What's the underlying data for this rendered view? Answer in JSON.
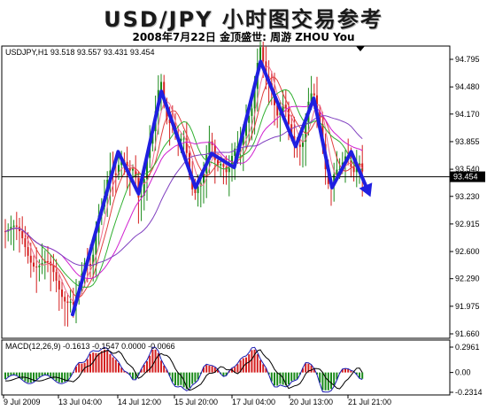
{
  "header": {
    "title": "USD/JPY 小时图交易参考",
    "subtitle": "2008年7月22日    金顶盛世: 周游 ZHOU You"
  },
  "chart_data": [
    {
      "type": "line",
      "subtype": "candlestick",
      "label": "USDJPY,H1  93.518 93.557 93.431 93.454",
      "symbol": "USDJPY,H1",
      "ohlc": {
        "open": 93.518,
        "high": 93.557,
        "low": 93.431,
        "close": 93.454
      },
      "current_price": 93.454,
      "current_price_label": "93.454",
      "y_ticks": [
        "94.795",
        "94.480",
        "94.170",
        "93.855",
        "93.540",
        "93.230",
        "92.915",
        "92.600",
        "92.290",
        "91.975",
        "91.660"
      ],
      "ylim": [
        91.66,
        94.795
      ],
      "x_ticks": [
        "9 Jul 2009",
        "13 Jul 04:00",
        "14 Jul 12:00",
        "15 Jul 20:00",
        "17 Jul 04:00",
        "20 Jul 13:00",
        "21 Jul 21:00"
      ],
      "trend_path": [
        {
          "x": 0.0,
          "y": 91.88
        },
        {
          "x": 1.0,
          "y": 93.74
        },
        {
          "x": 1.45,
          "y": 93.26
        },
        {
          "x": 1.95,
          "y": 94.43
        },
        {
          "x": 2.7,
          "y": 93.33
        },
        {
          "x": 3.05,
          "y": 93.72
        },
        {
          "x": 3.55,
          "y": 93.56
        },
        {
          "x": 4.13,
          "y": 94.77
        },
        {
          "x": 4.9,
          "y": 93.8
        },
        {
          "x": 5.3,
          "y": 94.35
        },
        {
          "x": 5.7,
          "y": 93.33
        },
        {
          "x": 6.12,
          "y": 93.74
        },
        {
          "x": 6.5,
          "y": 93.28
        }
      ],
      "colors": {
        "trend": "#1f1fe0",
        "bull": "#1a8a1a",
        "bear": "#d42020",
        "ma_magenta": "#d020d0",
        "ma_red": "#e04040",
        "ma_green": "#30b030",
        "ma_purple": "#8040c0",
        "ma_pink": "#f07090"
      }
    },
    {
      "type": "bar",
      "label": "MACD(12,26,9) -0.1613 -0.1547 0.0000 -0.0066",
      "y_ticks": [
        "0.2961",
        "0.00",
        "-0.2314"
      ],
      "ylim": [
        -0.2314,
        0.2961
      ]
    }
  ]
}
